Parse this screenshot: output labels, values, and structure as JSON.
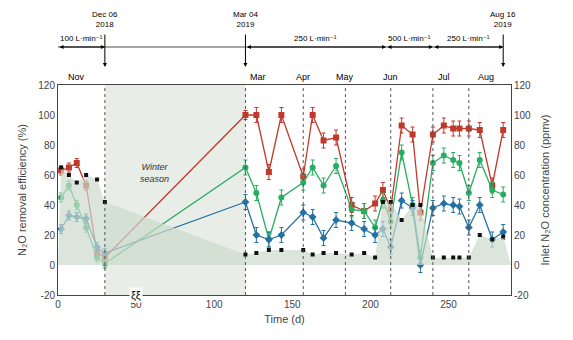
{
  "chart_data": {
    "type": "line",
    "xlabel": "Time (d)",
    "ylabel": "N₂O removal efficiency (%)",
    "y2label": "Inlet N₂O concentration (ppmv)",
    "xlim": [
      0,
      290
    ],
    "xticks": [
      0,
      50,
      100,
      150,
      200,
      250
    ],
    "ylim": [
      -20,
      120
    ],
    "yticks": [
      -20,
      0,
      20,
      40,
      60,
      80,
      100,
      120
    ],
    "y2lim": [
      -20,
      120
    ],
    "y2ticks": [
      -20,
      0,
      20,
      40,
      60,
      80,
      100,
      120
    ],
    "grid": false,
    "series": [
      {
        "type": "area",
        "axis": "y2",
        "color": "#ccdacc",
        "x": [
          0,
          2,
          7,
          12,
          18,
          25,
          30,
          120,
          127,
          135,
          143,
          157,
          163,
          170,
          178,
          188,
          196,
          203,
          208,
          213,
          220,
          227,
          232,
          240,
          247,
          253,
          257,
          263,
          270,
          278,
          285,
          290
        ],
        "values": [
          0,
          65,
          60,
          55,
          60,
          57,
          42,
          7,
          8,
          10,
          10,
          10,
          7,
          8,
          8,
          7,
          8,
          5,
          42,
          42,
          30,
          40,
          40,
          5,
          5,
          5,
          5,
          5,
          20,
          17,
          19,
          0
        ]
      },
      {
        "type": "line",
        "color": "#c0392b",
        "marker": "square",
        "x": [
          2,
          7,
          12,
          18,
          25,
          30,
          120,
          127,
          135,
          143,
          157,
          163,
          170,
          178,
          188,
          196,
          203,
          208,
          213,
          220,
          227,
          232,
          240,
          247,
          253,
          257,
          263,
          270,
          278,
          285
        ],
        "values": [
          63,
          65,
          68,
          53,
          8,
          5,
          100,
          100,
          62,
          100,
          59,
          100,
          83,
          85,
          40,
          36,
          41,
          50,
          37,
          93,
          87,
          35,
          87,
          93,
          91,
          91,
          91,
          90,
          53,
          90
        ],
        "error": [
          3,
          3,
          3,
          3,
          3,
          3,
          3,
          5,
          5,
          5,
          5,
          5,
          5,
          5,
          5,
          5,
          5,
          5,
          5,
          5,
          5,
          5,
          5,
          5,
          5,
          5,
          5,
          5,
          5,
          5
        ]
      },
      {
        "type": "line",
        "color": "#27ae60",
        "marker": "circle",
        "x": [
          2,
          7,
          12,
          18,
          25,
          30,
          120,
          127,
          135,
          143,
          157,
          163,
          170,
          178,
          188,
          196,
          203,
          208,
          213,
          220,
          227,
          232,
          240,
          247,
          253,
          257,
          263,
          270,
          278,
          285
        ],
        "values": [
          45,
          53,
          40,
          25,
          5,
          1,
          65,
          48,
          17,
          45,
          55,
          65,
          53,
          66,
          37,
          36,
          25,
          43,
          29,
          75,
          40,
          5,
          68,
          73,
          70,
          68,
          48,
          70,
          50,
          47
        ],
        "error": [
          3,
          3,
          3,
          3,
          3,
          3,
          5,
          5,
          5,
          5,
          5,
          5,
          5,
          5,
          5,
          5,
          5,
          5,
          5,
          5,
          5,
          5,
          5,
          5,
          5,
          5,
          5,
          5,
          5,
          5
        ]
      },
      {
        "type": "line",
        "color": "#2471a3",
        "marker": "diamond",
        "x": [
          2,
          7,
          12,
          18,
          25,
          30,
          120,
          127,
          135,
          143,
          157,
          163,
          170,
          178,
          188,
          196,
          203,
          208,
          213,
          220,
          227,
          232,
          240,
          247,
          253,
          257,
          263,
          270,
          278,
          285
        ],
        "values": [
          24,
          33,
          32,
          31,
          12,
          8,
          42,
          20,
          17,
          20,
          35,
          32,
          18,
          30,
          28,
          24,
          20,
          24,
          12,
          43,
          38,
          0,
          38,
          41,
          40,
          39,
          25,
          40,
          17,
          22
        ],
        "error": [
          3,
          3,
          3,
          3,
          3,
          3,
          5,
          5,
          5,
          5,
          5,
          5,
          5,
          5,
          5,
          5,
          5,
          5,
          5,
          5,
          5,
          5,
          5,
          5,
          5,
          5,
          5,
          5,
          5,
          5
        ]
      },
      {
        "type": "scatter",
        "axis": "y2",
        "color": "#111111",
        "marker": "square",
        "x": [
          2,
          7,
          12,
          18,
          25,
          30,
          120,
          127,
          135,
          143,
          157,
          163,
          170,
          178,
          188,
          196,
          203,
          208,
          213,
          220,
          227,
          232,
          240,
          247,
          253,
          257,
          263,
          270,
          278,
          285
        ],
        "values": [
          65,
          60,
          55,
          60,
          57,
          42,
          7,
          8,
          10,
          10,
          10,
          7,
          8,
          8,
          7,
          8,
          5,
          42,
          42,
          30,
          40,
          40,
          5,
          5,
          5,
          5,
          5,
          20,
          17,
          19
        ]
      }
    ],
    "spans": [
      {
        "x0": 30,
        "x1": 120,
        "color": "#e8ede8",
        "text": "Winter\nseason"
      }
    ],
    "vlines": [
      30,
      120,
      157,
      184,
      213,
      240,
      263
    ],
    "month_labels": [
      {
        "text": "Nov",
        "x": 12
      },
      {
        "text": "Mar",
        "x": 128
      },
      {
        "text": "Apr",
        "x": 157
      },
      {
        "text": "May",
        "x": 184
      },
      {
        "text": "Jun",
        "x": 213
      },
      {
        "text": "Jul",
        "x": 247
      },
      {
        "text": "Aug",
        "x": 274
      }
    ],
    "flow_rates": [
      {
        "text": "100 L·min⁻¹",
        "x0": 0,
        "x1": 30
      },
      {
        "text": "250 L·min⁻¹",
        "x0": 120,
        "x1": 210
      },
      {
        "text": "500 L·min⁻¹",
        "x0": 210,
        "x1": 240
      },
      {
        "text": "250 L·min⁻¹",
        "x0": 240,
        "x1": 285
      }
    ],
    "date_arrows": [
      {
        "text": "Dec 06\n2018",
        "x": 30
      },
      {
        "text": "Mar 04\n2019",
        "x": 120
      },
      {
        "text": "Aug 16\n2019",
        "x": 285
      }
    ],
    "annotations": [
      {
        "text": "ξξ",
        "x": 50
      }
    ]
  }
}
